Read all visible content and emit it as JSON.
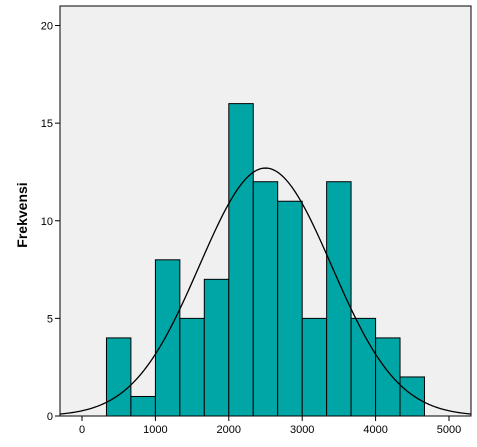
{
  "chart_data": {
    "type": "bar",
    "ylabel": "Frekvensi",
    "xlim": [
      -300,
      5300
    ],
    "ylim": [
      0,
      21
    ],
    "x_ticks": [
      0,
      1000,
      2000,
      3000,
      4000,
      5000
    ],
    "y_ticks": [
      0,
      5,
      10,
      15,
      20
    ],
    "bin_width": 333,
    "bins": [
      {
        "x0": 333,
        "x1": 666,
        "value": 4
      },
      {
        "x0": 666,
        "x1": 1000,
        "value": 1
      },
      {
        "x0": 1000,
        "x1": 1333,
        "value": 8
      },
      {
        "x0": 1333,
        "x1": 1666,
        "value": 5
      },
      {
        "x0": 1666,
        "x1": 2000,
        "value": 7
      },
      {
        "x0": 2000,
        "x1": 2333,
        "value": 16
      },
      {
        "x0": 2333,
        "x1": 2666,
        "value": 12
      },
      {
        "x0": 2666,
        "x1": 3000,
        "value": 11
      },
      {
        "x0": 3000,
        "x1": 3333,
        "value": 5
      },
      {
        "x0": 3333,
        "x1": 3666,
        "value": 12
      },
      {
        "x0": 3666,
        "x1": 4000,
        "value": 5
      },
      {
        "x0": 4000,
        "x1": 4333,
        "value": 4
      },
      {
        "x0": 4333,
        "x1": 4666,
        "value": 2
      }
    ],
    "normal_curve": {
      "mean": 2500,
      "sd": 900,
      "peak": 12.7
    },
    "grid": false,
    "colors": {
      "bar_fill": "#00a6a6",
      "bar_stroke": "#000000",
      "plot_background": "#f0f0f0",
      "curve": "#000000",
      "axis": "#000000"
    }
  }
}
